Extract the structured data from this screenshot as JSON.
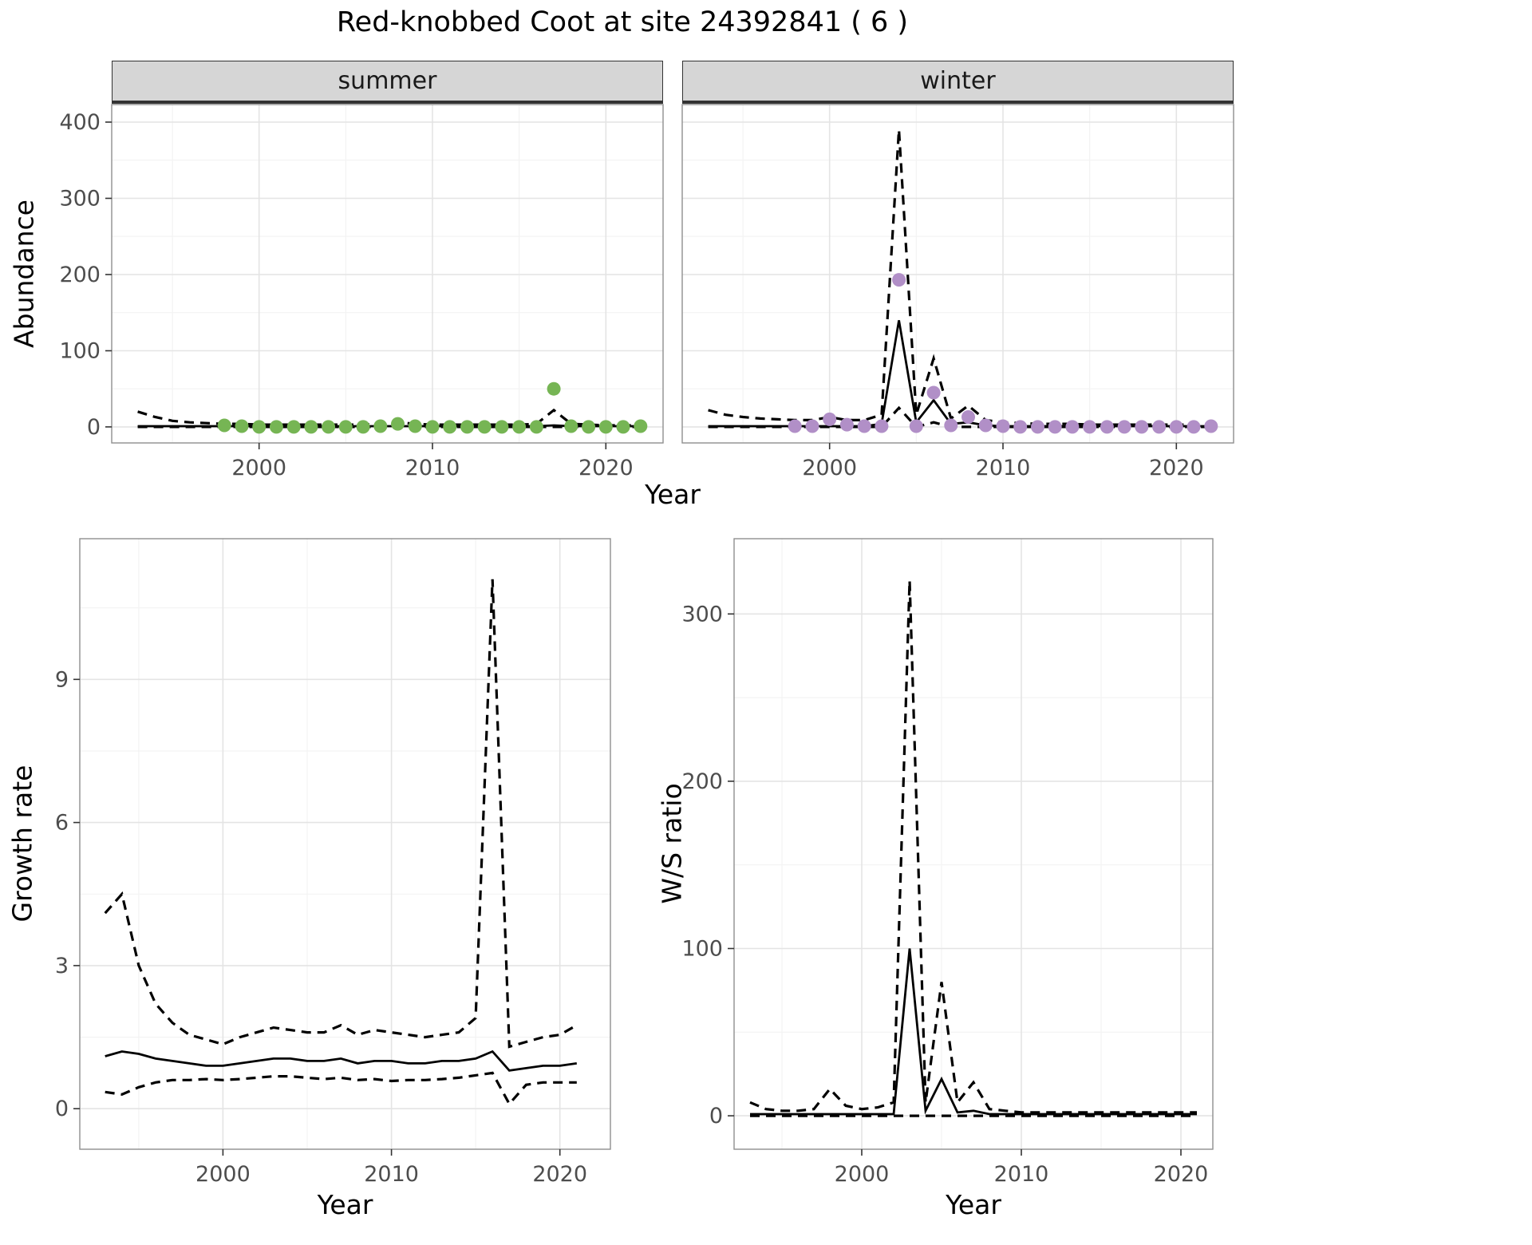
{
  "title": "Red-knobbed Coot at site 24392841 ( 6 )",
  "colors": {
    "summer_points": "#76b554",
    "winter_points": "#b18fc7",
    "fit_line": "#000000",
    "ci_line": "#000000",
    "strip_background": "#d6d6d6",
    "major_grid": "#e4e4e4",
    "minor_grid": "#f3f3f3",
    "panel_border": "#8f8f8f",
    "tick_text": "#4d4d4d"
  },
  "chart_data": [
    {
      "id": "abundance",
      "type": "line",
      "title": "",
      "xlabel": "Year",
      "ylabel": "Abundance",
      "facets": [
        "summer",
        "winter"
      ],
      "legend": "none",
      "grid": true,
      "xlim": [
        1991.5,
        2023.3
      ],
      "ylim": [
        -21,
        423
      ],
      "xticks": [
        2000,
        2010,
        2020
      ],
      "yticks": [
        0,
        100,
        200,
        300,
        400
      ],
      "years_fit": [
        1993,
        1994,
        1995,
        1996,
        1997,
        1998,
        1999,
        2000,
        2001,
        2002,
        2003,
        2004,
        2005,
        2006,
        2007,
        2008,
        2009,
        2010,
        2011,
        2012,
        2013,
        2014,
        2015,
        2016,
        2017,
        2018,
        2019,
        2020,
        2021,
        2022
      ],
      "years_obs": [
        1998,
        1999,
        2000,
        2001,
        2002,
        2003,
        2004,
        2005,
        2006,
        2007,
        2008,
        2009,
        2010,
        2011,
        2012,
        2013,
        2014,
        2015,
        2016,
        2017,
        2018,
        2019,
        2020,
        2021,
        2022
      ],
      "panels": [
        {
          "facet": "summer",
          "point_color": "#76b554",
          "observations": [
            2,
            1,
            0,
            0,
            0,
            0,
            0,
            0,
            0,
            1,
            4,
            1,
            0,
            0,
            0,
            0,
            0,
            0,
            0,
            50,
            1,
            0,
            0,
            0,
            1
          ],
          "series": [
            {
              "name": "ci_lower",
              "style": "dashed",
              "values": [
                0,
                0,
                0,
                0,
                0,
                0,
                0,
                0,
                0,
                0,
                0,
                0,
                0,
                0,
                0,
                0,
                0,
                0,
                0,
                0,
                0,
                0,
                0,
                0,
                0,
                0,
                0,
                0,
                0,
                0
              ]
            },
            {
              "name": "ci_upper",
              "style": "dashed",
              "values": [
                20,
                13,
                8,
                6,
                5,
                4,
                4,
                3,
                3,
                3,
                3,
                3,
                3,
                3,
                4,
                6,
                4,
                3,
                3,
                3,
                3,
                3,
                3,
                4,
                22,
                4,
                3,
                2,
                2,
                2
              ]
            },
            {
              "name": "fit",
              "style": "solid",
              "values": [
                1,
                1,
                1,
                1,
                1,
                1,
                1,
                1,
                1,
                1,
                1,
                1,
                1,
                1,
                1,
                1,
                1,
                1,
                1,
                1,
                1,
                1,
                1,
                1,
                2,
                1,
                1,
                1,
                1,
                1
              ]
            }
          ]
        },
        {
          "facet": "winter",
          "point_color": "#b18fc7",
          "observations": [
            1,
            1,
            10,
            3,
            1,
            1,
            193,
            1,
            45,
            2,
            13,
            2,
            1,
            0,
            0,
            0,
            0,
            0,
            0,
            0,
            0,
            0,
            0,
            0,
            1
          ],
          "series": [
            {
              "name": "ci_lower",
              "style": "dashed",
              "values": [
                0,
                0,
                0,
                0,
                0,
                0,
                0,
                0,
                0,
                0,
                0,
                25,
                0,
                6,
                0,
                0,
                0,
                0,
                0,
                0,
                0,
                0,
                0,
                0,
                0,
                0,
                0,
                0,
                0,
                0
              ]
            },
            {
              "name": "ci_upper",
              "style": "dashed",
              "values": [
                22,
                16,
                13,
                11,
                10,
                9,
                9,
                13,
                9,
                9,
                16,
                390,
                16,
                90,
                11,
                28,
                9,
                6,
                5,
                4,
                4,
                4,
                3,
                3,
                3,
                3,
                3,
                3,
                3,
                3
              ]
            },
            {
              "name": "fit",
              "style": "solid",
              "values": [
                1,
                1,
                1,
                1,
                1,
                1,
                1,
                1,
                1,
                1,
                4,
                140,
                6,
                35,
                4,
                6,
                2,
                1,
                1,
                1,
                1,
                1,
                1,
                1,
                1,
                1,
                1,
                1,
                1,
                1
              ]
            }
          ]
        }
      ]
    },
    {
      "id": "growth_rate",
      "type": "line",
      "title": "",
      "xlabel": "Year",
      "ylabel": "Growth rate",
      "legend": "none",
      "grid": true,
      "xlim": [
        1991.5,
        2023
      ],
      "ylim": [
        -0.85,
        11.95
      ],
      "xticks": [
        2000,
        2010,
        2020
      ],
      "yticks": [
        0,
        3,
        6,
        9
      ],
      "years": [
        1993,
        1994,
        1995,
        1996,
        1997,
        1998,
        1999,
        2000,
        2001,
        2002,
        2003,
        2004,
        2005,
        2006,
        2007,
        2008,
        2009,
        2010,
        2011,
        2012,
        2013,
        2014,
        2015,
        2016,
        2017,
        2018,
        2019,
        2020,
        2021
      ],
      "series": [
        {
          "name": "ci_lower",
          "style": "dashed",
          "values": [
            0.35,
            0.3,
            0.45,
            0.55,
            0.6,
            0.6,
            0.62,
            0.6,
            0.62,
            0.65,
            0.68,
            0.68,
            0.65,
            0.62,
            0.65,
            0.6,
            0.62,
            0.58,
            0.6,
            0.6,
            0.62,
            0.65,
            0.7,
            0.75,
            0.1,
            0.5,
            0.55,
            0.55,
            0.55
          ]
        },
        {
          "name": "ci_upper",
          "style": "dashed",
          "values": [
            4.1,
            4.5,
            3.0,
            2.2,
            1.8,
            1.55,
            1.45,
            1.35,
            1.5,
            1.6,
            1.7,
            1.65,
            1.6,
            1.6,
            1.75,
            1.55,
            1.65,
            1.6,
            1.55,
            1.5,
            1.55,
            1.6,
            1.9,
            11.1,
            1.3,
            1.4,
            1.5,
            1.55,
            1.75
          ]
        },
        {
          "name": "fit",
          "style": "solid",
          "values": [
            1.1,
            1.2,
            1.15,
            1.05,
            1.0,
            0.95,
            0.9,
            0.9,
            0.95,
            1.0,
            1.05,
            1.05,
            1.0,
            1.0,
            1.05,
            0.95,
            1.0,
            1.0,
            0.95,
            0.95,
            1.0,
            1.0,
            1.05,
            1.2,
            0.8,
            0.85,
            0.9,
            0.9,
            0.95
          ]
        }
      ]
    },
    {
      "id": "ws_ratio",
      "type": "line",
      "title": "",
      "xlabel": "Year",
      "ylabel": "W/S ratio",
      "legend": "none",
      "grid": true,
      "xlim": [
        1992,
        2022
      ],
      "ylim": [
        -20,
        345
      ],
      "xticks": [
        2000,
        2010,
        2020
      ],
      "yticks": [
        0,
        100,
        200,
        300
      ],
      "years": [
        1993,
        1994,
        1995,
        1996,
        1997,
        1998,
        1999,
        2000,
        2001,
        2002,
        2003,
        2004,
        2005,
        2006,
        2007,
        2008,
        2009,
        2010,
        2011,
        2012,
        2013,
        2014,
        2015,
        2016,
        2017,
        2018,
        2019,
        2020,
        2021
      ],
      "series": [
        {
          "name": "ci_lower",
          "style": "dashed",
          "values": [
            0,
            0,
            0,
            0,
            0,
            0,
            0,
            0,
            0,
            0,
            0,
            0,
            0,
            0,
            0,
            0,
            0,
            0,
            0,
            0,
            0,
            0,
            0,
            0,
            0,
            0,
            0,
            0,
            0
          ]
        },
        {
          "name": "ci_upper",
          "style": "dashed",
          "values": [
            8,
            4,
            3,
            3,
            4,
            16,
            6,
            4,
            5,
            8,
            320,
            8,
            80,
            8,
            20,
            4,
            3,
            2,
            2,
            2,
            2,
            2,
            2,
            2,
            2,
            2,
            2,
            2,
            2
          ]
        },
        {
          "name": "fit",
          "style": "solid",
          "values": [
            1,
            1,
            1,
            1,
            1,
            1,
            1,
            1,
            1,
            1,
            100,
            3,
            22,
            2,
            3,
            1,
            1,
            1,
            1,
            1,
            1,
            1,
            1,
            1,
            1,
            1,
            1,
            1,
            1
          ]
        }
      ]
    }
  ]
}
